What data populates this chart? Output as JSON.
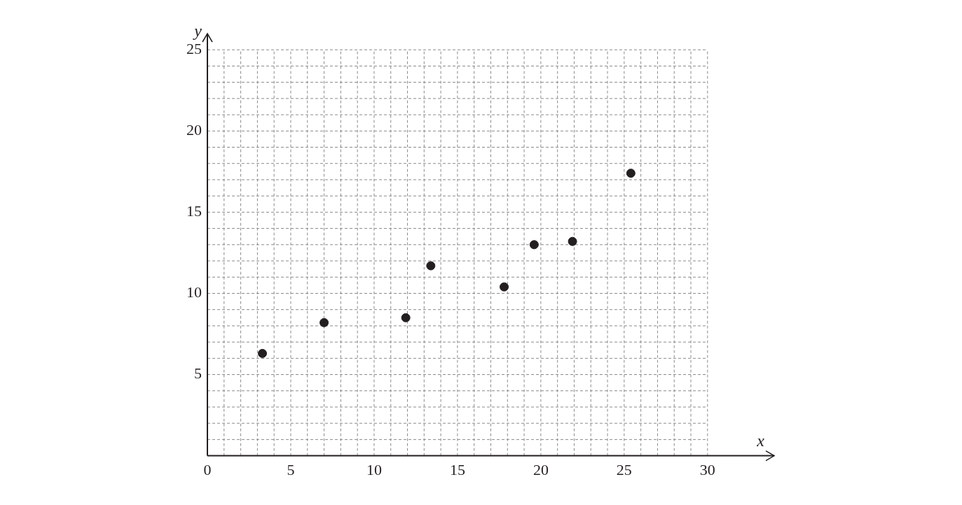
{
  "chart_data": {
    "type": "scatter",
    "xlabel": "x",
    "ylabel": "y",
    "x": [
      3.3,
      7.0,
      11.9,
      13.4,
      17.8,
      19.6,
      21.9,
      25.4
    ],
    "values": [
      6.3,
      8.2,
      8.5,
      11.7,
      10.4,
      13.0,
      13.2,
      17.4
    ],
    "color": "#231f20",
    "marker": "circle",
    "grid": true,
    "legend": false,
    "xlim": [
      0,
      34
    ],
    "ylim": [
      0,
      26
    ],
    "xticks": [
      0,
      {
        "value": 1,
        "label": null
      },
      {
        "value": 2,
        "label": null
      },
      {
        "value": 3,
        "label": null
      },
      {
        "value": 4,
        "label": null
      },
      5,
      {
        "value": 6,
        "label": null
      },
      {
        "value": 7,
        "label": null
      },
      {
        "value": 8,
        "label": null
      },
      {
        "value": 9,
        "label": null
      },
      10,
      {
        "value": 11,
        "label": null
      },
      {
        "value": 12,
        "label": null
      },
      {
        "value": 13,
        "label": null
      },
      {
        "value": 14,
        "label": null
      },
      15,
      {
        "value": 16,
        "label": null
      },
      {
        "value": 17,
        "label": null
      },
      {
        "value": 18,
        "label": null
      },
      {
        "value": 19,
        "label": null
      },
      20,
      {
        "value": 21,
        "label": null
      },
      {
        "value": 22,
        "label": null
      },
      {
        "value": 23,
        "label": null
      },
      {
        "value": 24,
        "label": null
      },
      25,
      {
        "value": 26,
        "label": null
      },
      {
        "value": 27,
        "label": null
      },
      {
        "value": 28,
        "label": null
      },
      {
        "value": 29,
        "label": null
      },
      30
    ],
    "yticks": [
      {
        "value": 0,
        "label": null
      },
      {
        "value": 1,
        "label": null
      },
      {
        "value": 2,
        "label": null
      },
      {
        "value": 3,
        "label": null
      },
      {
        "value": 4,
        "label": null
      },
      5,
      {
        "value": 6,
        "label": null
      },
      {
        "value": 7,
        "label": null
      },
      {
        "value": 8,
        "label": null
      },
      {
        "value": 9,
        "label": null
      },
      10,
      {
        "value": 11,
        "label": null
      },
      {
        "value": 12,
        "label": null
      },
      {
        "value": 13,
        "label": null
      },
      {
        "value": 14,
        "label": null
      },
      15,
      {
        "value": 16,
        "label": null
      },
      {
        "value": 17,
        "label": null
      },
      {
        "value": 18,
        "label": null
      },
      {
        "value": 19,
        "label": null
      },
      20,
      {
        "value": 21,
        "label": null
      },
      {
        "value": 22,
        "label": null
      },
      {
        "value": 23,
        "label": null
      },
      {
        "value": 24,
        "label": null
      },
      25
    ]
  }
}
